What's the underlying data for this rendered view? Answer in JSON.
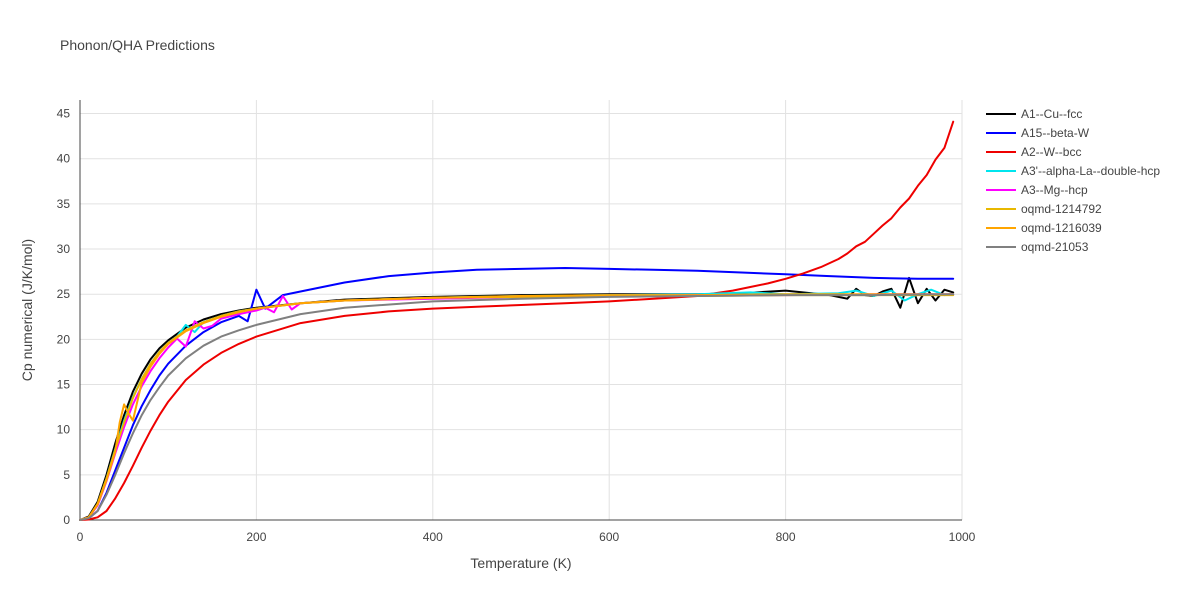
{
  "chart_data": {
    "type": "line",
    "title": "Phonon/QHA Predictions",
    "xlabel": "Temperature (K)",
    "ylabel": "Cp numerical (J/K/mol)",
    "xlim": [
      0,
      1000
    ],
    "ylim": [
      0,
      46.5
    ],
    "xticks": [
      0,
      200,
      400,
      600,
      800,
      1000
    ],
    "yticks": [
      0,
      5,
      10,
      15,
      20,
      25,
      30,
      35,
      40,
      45
    ],
    "grid": true,
    "legend_position": "right",
    "series": [
      {
        "name": "A1--Cu--fcc",
        "color": "#000000",
        "x": [
          0,
          10,
          20,
          30,
          40,
          50,
          60,
          70,
          80,
          90,
          100,
          120,
          140,
          160,
          180,
          200,
          250,
          300,
          400,
          500,
          600,
          700,
          750,
          800,
          850,
          870,
          880,
          890,
          900,
          910,
          920,
          930,
          940,
          950,
          960,
          970,
          980,
          990
        ],
        "y": [
          0,
          0.4,
          2.0,
          5.0,
          8.5,
          11.6,
          14.2,
          16.2,
          17.8,
          19.0,
          19.9,
          21.3,
          22.2,
          22.8,
          23.2,
          23.5,
          24.0,
          24.4,
          24.7,
          24.9,
          25.0,
          25.0,
          25.1,
          25.4,
          24.9,
          24.5,
          25.6,
          24.9,
          24.8,
          25.3,
          25.6,
          23.5,
          26.8,
          24.0,
          25.6,
          24.3,
          25.5,
          25.2
        ]
      },
      {
        "name": "A15--beta-W",
        "color": "#0000ff",
        "x": [
          0,
          10,
          20,
          30,
          40,
          50,
          60,
          70,
          80,
          90,
          100,
          120,
          140,
          160,
          180,
          190,
          200,
          210,
          230,
          250,
          300,
          350,
          400,
          450,
          500,
          550,
          600,
          650,
          700,
          750,
          800,
          850,
          900,
          950,
          970,
          990
        ],
        "y": [
          0,
          0.2,
          1.0,
          3.0,
          5.5,
          8.0,
          10.5,
          12.6,
          14.4,
          16.0,
          17.3,
          19.3,
          20.8,
          21.9,
          22.6,
          22.0,
          25.5,
          23.4,
          24.9,
          25.3,
          26.3,
          27.0,
          27.4,
          27.7,
          27.8,
          27.9,
          27.8,
          27.7,
          27.6,
          27.4,
          27.2,
          27.0,
          26.8,
          26.7,
          26.7,
          26.7
        ]
      },
      {
        "name": "A2--W--bcc",
        "color": "#ee0000",
        "x": [
          0,
          10,
          20,
          30,
          40,
          50,
          60,
          70,
          80,
          90,
          100,
          120,
          140,
          160,
          180,
          200,
          250,
          300,
          350,
          400,
          450,
          500,
          550,
          600,
          650,
          700,
          720,
          740,
          760,
          780,
          800,
          820,
          840,
          860,
          870,
          880,
          890,
          900,
          910,
          920,
          930,
          940,
          950,
          960,
          970,
          980,
          990
        ],
        "y": [
          0,
          0.05,
          0.3,
          1.0,
          2.4,
          4.1,
          6.0,
          8.0,
          9.9,
          11.6,
          13.1,
          15.5,
          17.2,
          18.5,
          19.5,
          20.3,
          21.8,
          22.6,
          23.1,
          23.4,
          23.6,
          23.8,
          24.0,
          24.2,
          24.5,
          24.8,
          25.1,
          25.4,
          25.8,
          26.2,
          26.7,
          27.3,
          28.0,
          28.9,
          29.5,
          30.3,
          30.8,
          31.7,
          32.6,
          33.4,
          34.6,
          35.6,
          37.0,
          38.2,
          39.9,
          41.2,
          44.1
        ]
      },
      {
        "name": "A3'--alpha-La--double-hcp",
        "color": "#00e5ee",
        "x": [
          0,
          10,
          20,
          30,
          40,
          50,
          60,
          70,
          80,
          90,
          100,
          110,
          120,
          130,
          140,
          160,
          180,
          200,
          250,
          300,
          400,
          500,
          600,
          700,
          760,
          800,
          860,
          880,
          900,
          920,
          935,
          950,
          965,
          980,
          990
        ],
        "y": [
          0,
          0.3,
          1.7,
          4.6,
          7.9,
          11.0,
          13.6,
          15.6,
          17.3,
          18.6,
          19.6,
          20.3,
          21.6,
          20.8,
          21.9,
          22.6,
          23.1,
          23.4,
          24.0,
          24.3,
          24.6,
          24.8,
          24.9,
          25.0,
          25.2,
          25.0,
          25.1,
          25.4,
          24.8,
          25.4,
          24.3,
          25.0,
          25.5,
          24.9,
          25.0
        ]
      },
      {
        "name": "A3--Mg--hcp",
        "color": "#ff00ff",
        "x": [
          0,
          10,
          20,
          30,
          40,
          50,
          60,
          70,
          80,
          90,
          100,
          110,
          120,
          130,
          140,
          150,
          160,
          180,
          200,
          210,
          220,
          230,
          240,
          250,
          300,
          400,
          500,
          600,
          700,
          800,
          900,
          950,
          990
        ],
        "y": [
          0,
          0.3,
          1.6,
          4.3,
          7.4,
          10.3,
          12.8,
          14.8,
          16.5,
          17.9,
          19.1,
          20.1,
          19.2,
          22.0,
          21.2,
          21.5,
          22.3,
          22.8,
          23.2,
          23.5,
          23.0,
          24.8,
          23.3,
          24.0,
          24.3,
          24.5,
          24.7,
          24.8,
          24.9,
          24.9,
          25.0,
          25.0,
          25.0
        ]
      },
      {
        "name": "oqmd-1214792",
        "color": "#e8b800",
        "x": [
          0,
          10,
          20,
          30,
          40,
          50,
          60,
          70,
          80,
          90,
          100,
          120,
          140,
          160,
          180,
          200,
          250,
          300,
          400,
          500,
          600,
          700,
          800,
          900,
          990
        ],
        "y": [
          0,
          0.3,
          1.8,
          4.6,
          7.8,
          10.8,
          13.5,
          15.6,
          17.3,
          18.6,
          19.6,
          21.0,
          21.9,
          22.6,
          23.1,
          23.4,
          24.0,
          24.3,
          24.6,
          24.7,
          24.8,
          24.8,
          24.9,
          24.9,
          24.9
        ]
      },
      {
        "name": "oqmd-1216039",
        "color": "#ffa500",
        "x": [
          0,
          10,
          20,
          30,
          40,
          45,
          50,
          55,
          60,
          70,
          80,
          90,
          100,
          120,
          140,
          160,
          180,
          200,
          250,
          300,
          400,
          500,
          600,
          700,
          800,
          900,
          990
        ],
        "y": [
          0,
          0.3,
          1.7,
          4.4,
          7.6,
          10.8,
          12.8,
          11.8,
          11.0,
          15.2,
          17.0,
          18.4,
          19.5,
          20.9,
          21.8,
          22.5,
          23.0,
          23.4,
          24.0,
          24.3,
          24.6,
          24.8,
          24.9,
          24.9,
          25.0,
          25.0,
          25.0
        ]
      },
      {
        "name": "oqmd-21053",
        "color": "#808080",
        "x": [
          0,
          10,
          20,
          30,
          40,
          50,
          60,
          70,
          80,
          90,
          100,
          120,
          140,
          160,
          180,
          200,
          250,
          300,
          400,
          500,
          600,
          700,
          800,
          900,
          990
        ],
        "y": [
          0,
          0.2,
          1.0,
          2.8,
          5.0,
          7.4,
          9.6,
          11.6,
          13.3,
          14.7,
          16.0,
          17.9,
          19.3,
          20.3,
          21.0,
          21.6,
          22.8,
          23.5,
          24.2,
          24.5,
          24.7,
          24.8,
          24.9,
          24.9,
          25.0
        ]
      }
    ]
  }
}
